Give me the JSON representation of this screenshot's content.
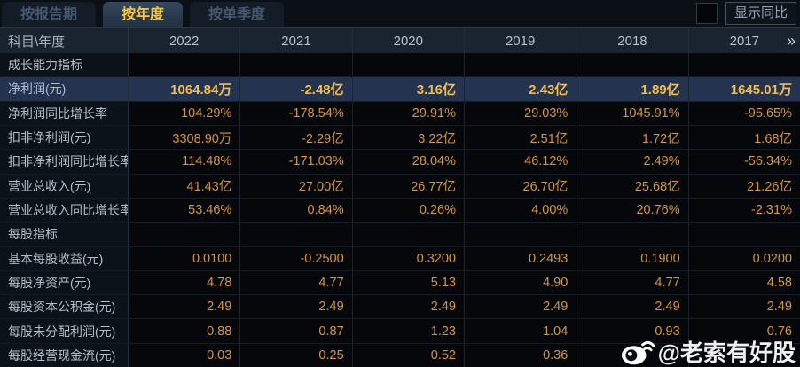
{
  "tabs": [
    {
      "label": "按报告期",
      "active": false
    },
    {
      "label": "按年度",
      "active": true
    },
    {
      "label": "按单季度",
      "active": false
    }
  ],
  "controls": {
    "show_yoy_label": "显示同比",
    "checkbox_checked": false
  },
  "table": {
    "corner_label": "科目\\年度",
    "years": [
      "2022",
      "2021",
      "2020",
      "2019",
      "2018",
      "2017"
    ],
    "more_icon": "»",
    "rows": [
      {
        "type": "section",
        "label": "成长能力指标",
        "highlight": false,
        "values": [
          "",
          "",
          "",
          "",
          "",
          ""
        ]
      },
      {
        "type": "data",
        "label": "净利润(元)",
        "highlight": true,
        "values": [
          "1064.84万",
          "-2.48亿",
          "3.16亿",
          "2.43亿",
          "1.89亿",
          "1645.01万"
        ]
      },
      {
        "type": "data",
        "label": "净利润同比增长率",
        "highlight": false,
        "values": [
          "104.29%",
          "-178.54%",
          "29.91%",
          "29.03%",
          "1045.91%",
          "-95.65%"
        ]
      },
      {
        "type": "data",
        "label": "扣非净利润(元)",
        "highlight": false,
        "values": [
          "3308.90万",
          "-2.29亿",
          "3.22亿",
          "2.51亿",
          "1.72亿",
          "1.68亿"
        ]
      },
      {
        "type": "data",
        "label": "扣非净利润同比增长率",
        "highlight": false,
        "values": [
          "114.48%",
          "-171.03%",
          "28.04%",
          "46.12%",
          "2.49%",
          "-56.34%"
        ]
      },
      {
        "type": "data",
        "label": "营业总收入(元)",
        "highlight": false,
        "values": [
          "41.43亿",
          "27.00亿",
          "26.77亿",
          "26.70亿",
          "25.68亿",
          "21.26亿"
        ]
      },
      {
        "type": "data",
        "label": "营业总收入同比增长率",
        "highlight": false,
        "values": [
          "53.46%",
          "0.84%",
          "0.26%",
          "4.00%",
          "20.76%",
          "-2.31%"
        ]
      },
      {
        "type": "section",
        "label": "每股指标",
        "highlight": false,
        "values": [
          "",
          "",
          "",
          "",
          "",
          ""
        ]
      },
      {
        "type": "data",
        "label": "基本每股收益(元)",
        "highlight": false,
        "values": [
          "0.0100",
          "-0.2500",
          "0.3200",
          "0.2493",
          "0.1900",
          "0.0200"
        ]
      },
      {
        "type": "data",
        "label": "每股净资产(元)",
        "highlight": false,
        "values": [
          "4.78",
          "4.77",
          "5.13",
          "4.90",
          "4.77",
          "4.58"
        ]
      },
      {
        "type": "data",
        "label": "每股资本公积金(元)",
        "highlight": false,
        "values": [
          "2.49",
          "2.49",
          "2.49",
          "2.49",
          "2.49",
          "2.49"
        ]
      },
      {
        "type": "data",
        "label": "每股未分配利润(元)",
        "highlight": false,
        "values": [
          "0.88",
          "0.87",
          "1.23",
          "1.04",
          "0.93",
          "0.76"
        ]
      },
      {
        "type": "data",
        "label": "每股经营现金流(元)",
        "highlight": false,
        "values": [
          "0.03",
          "0.25",
          "0.52",
          "0.36",
          "",
          ""
        ]
      }
    ]
  },
  "watermark": {
    "text": "@老索有好股",
    "icon": "weibo-icon"
  },
  "colors": {
    "accent_gold": "#f2bd4d",
    "value_gold": "#d4973e",
    "highlight_row_bg": "#243450",
    "header_bg": "#1a2431",
    "tab_active_text": "#f6c63c"
  }
}
